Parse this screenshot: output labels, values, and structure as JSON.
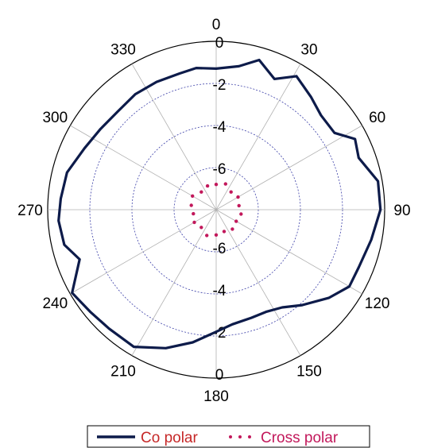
{
  "chart_data": {
    "type": "polar-line",
    "angular_ticks": [
      "0",
      "30",
      "60",
      "90",
      "120",
      "150",
      "180",
      "210",
      "240",
      "270",
      "300",
      "330"
    ],
    "radial_ticks": [
      "0",
      "-2",
      "-4",
      "-6"
    ],
    "rlim": [
      -8,
      0
    ],
    "grid": true,
    "legend_position": "bottom",
    "series": [
      {
        "name": "Co polar",
        "color": "#0d1b4a",
        "style": "solid",
        "points": [
          {
            "theta": 0,
            "r": -1.3
          },
          {
            "theta": 9,
            "r": -1.1
          },
          {
            "theta": 16,
            "r": -0.6
          },
          {
            "theta": 24,
            "r": -1.2
          },
          {
            "theta": 31,
            "r": -0.6
          },
          {
            "theta": 40,
            "r": -1.0
          },
          {
            "theta": 48,
            "r": -1.3
          },
          {
            "theta": 57,
            "r": -1.3
          },
          {
            "theta": 63,
            "r": -0.6
          },
          {
            "theta": 70,
            "r": -0.8
          },
          {
            "theta": 80,
            "r": -0.2
          },
          {
            "theta": 90,
            "r": -0.2
          },
          {
            "theta": 101,
            "r": -0.5
          },
          {
            "theta": 112,
            "r": -0.7
          },
          {
            "theta": 120,
            "r": -0.7
          },
          {
            "theta": 128,
            "r": -1.2
          },
          {
            "theta": 138,
            "r": -1.9
          },
          {
            "theta": 146,
            "r": -2.4
          },
          {
            "theta": 154,
            "r": -2.6
          },
          {
            "theta": 162,
            "r": -2.6
          },
          {
            "theta": 172,
            "r": -2.5
          },
          {
            "theta": 180,
            "r": -2.2
          },
          {
            "theta": 190,
            "r": -1.6
          },
          {
            "theta": 200,
            "r": -1.0
          },
          {
            "theta": 211,
            "r": -0.4
          },
          {
            "theta": 222,
            "r": -0.4
          },
          {
            "theta": 231,
            "r": -0.3
          },
          {
            "theta": 240,
            "r": -0.1
          },
          {
            "theta": 250,
            "r": -1.1
          },
          {
            "theta": 257,
            "r": -0.6
          },
          {
            "theta": 266,
            "r": -0.5
          },
          {
            "theta": 274,
            "r": -0.6
          },
          {
            "theta": 284,
            "r": -0.7
          },
          {
            "theta": 295,
            "r": -1.1
          },
          {
            "theta": 305,
            "r": -1.3
          },
          {
            "theta": 315,
            "r": -1.4
          },
          {
            "theta": 325,
            "r": -1.3
          },
          {
            "theta": 335,
            "r": -1.3
          },
          {
            "theta": 345,
            "r": -1.3
          },
          {
            "theta": 352,
            "r": -1.2
          }
        ]
      },
      {
        "name": "Cross polar",
        "color": "#c2185b",
        "style": "dotted",
        "points": [
          {
            "theta": 0,
            "r": -6.8
          },
          {
            "theta": 20,
            "r": -6.7
          },
          {
            "theta": 40,
            "r": -6.9
          },
          {
            "theta": 60,
            "r": -6.8
          },
          {
            "theta": 80,
            "r": -6.9
          },
          {
            "theta": 100,
            "r": -6.8
          },
          {
            "theta": 120,
            "r": -6.9
          },
          {
            "theta": 140,
            "r": -6.8
          },
          {
            "theta": 160,
            "r": -6.9
          },
          {
            "theta": 180,
            "r": -6.8
          },
          {
            "theta": 200,
            "r": -6.7
          },
          {
            "theta": 220,
            "r": -6.9
          },
          {
            "theta": 240,
            "r": -6.8
          },
          {
            "theta": 260,
            "r": -6.9
          },
          {
            "theta": 280,
            "r": -6.8
          },
          {
            "theta": 300,
            "r": -6.7
          },
          {
            "theta": 320,
            "r": -6.9
          },
          {
            "theta": 340,
            "r": -6.8
          }
        ]
      }
    ]
  },
  "legend": {
    "co_polar_label": "Co polar",
    "cross_polar_label": "Cross polar",
    "co_polar_text_color": "#c62828",
    "cross_polar_text_color": "#c2185b"
  }
}
